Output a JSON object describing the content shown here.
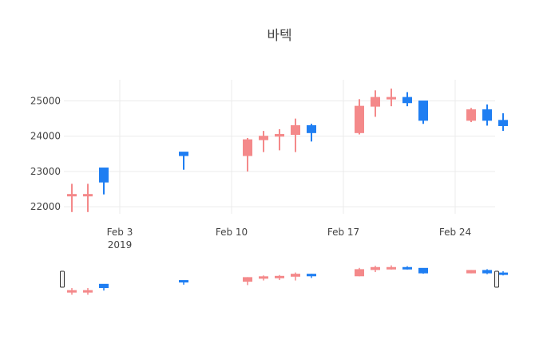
{
  "chart_data": {
    "type": "candlestick",
    "title": "바텍",
    "xlabel": "",
    "ylabel": "",
    "x_ticks": [
      {
        "date": "2019-02-03",
        "label": "Feb 3",
        "sublabel": "2019"
      },
      {
        "date": "2019-02-10",
        "label": "Feb 10",
        "sublabel": ""
      },
      {
        "date": "2019-02-17",
        "label": "Feb 17",
        "sublabel": ""
      },
      {
        "date": "2019-02-24",
        "label": "Feb 24",
        "sublabel": ""
      }
    ],
    "y_ticks": [
      22000,
      23000,
      24000,
      25000
    ],
    "xlim": [
      "2019-01-30T12:00",
      "2019-02-26T12:00"
    ],
    "ylim": [
      21800,
      25600
    ],
    "grid": true,
    "rangeslider": true,
    "increasing_color": "#f4898a",
    "decreasing_color": "#1f7ef2",
    "candles": [
      {
        "date": "2019-01-31",
        "open": 22350,
        "high": 22650,
        "low": 21850,
        "close": 22350
      },
      {
        "date": "2019-02-01",
        "open": 22350,
        "high": 22650,
        "low": 21850,
        "close": 22350
      },
      {
        "date": "2019-02-07",
        "open": 23550,
        "high": 23550,
        "low": 23050,
        "close": 23450
      },
      {
        "date": "2019-02-11",
        "open": 23450,
        "high": 23950,
        "low": 23000,
        "close": 23900
      },
      {
        "date": "2019-02-12",
        "open": 23900,
        "high": 24150,
        "low": 23550,
        "close": 24000
      },
      {
        "date": "2019-02-13",
        "open": 24000,
        "high": 24200,
        "low": 23600,
        "close": 24050
      },
      {
        "date": "2019-02-14",
        "open": 24050,
        "high": 24500,
        "low": 23550,
        "close": 24300
      },
      {
        "date": "2019-02-18",
        "open": 24100,
        "high": 25050,
        "low": 24050,
        "close": 24850
      },
      {
        "date": "2019-02-19",
        "open": 24850,
        "high": 25300,
        "low": 24550,
        "close": 25100
      },
      {
        "date": "2019-02-20",
        "open": 25100,
        "high": 25350,
        "low": 24850,
        "close": 25100
      },
      {
        "date": "2019-02-25",
        "open": 24450,
        "high": 24800,
        "low": 24400,
        "close": 24750
      },
      {
        "date": "2019-02-02",
        "open": 23100,
        "high": 23100,
        "low": 22350,
        "close": 22700
      },
      {
        "date": "2019-02-15",
        "open": 24300,
        "high": 24350,
        "low": 23850,
        "close": 24100
      },
      {
        "date": "2019-02-21",
        "open": 25100,
        "high": 25250,
        "low": 24850,
        "close": 24950
      },
      {
        "date": "2019-02-22",
        "open": 25000,
        "high": 25000,
        "low": 24350,
        "close": 24450
      },
      {
        "date": "2019-02-26",
        "open": 24750,
        "high": 24900,
        "low": 24300,
        "close": 24450
      },
      {
        "date": "2019-02-27",
        "open": 24450,
        "high": 24650,
        "low": 24150,
        "close": 24300
      }
    ]
  }
}
